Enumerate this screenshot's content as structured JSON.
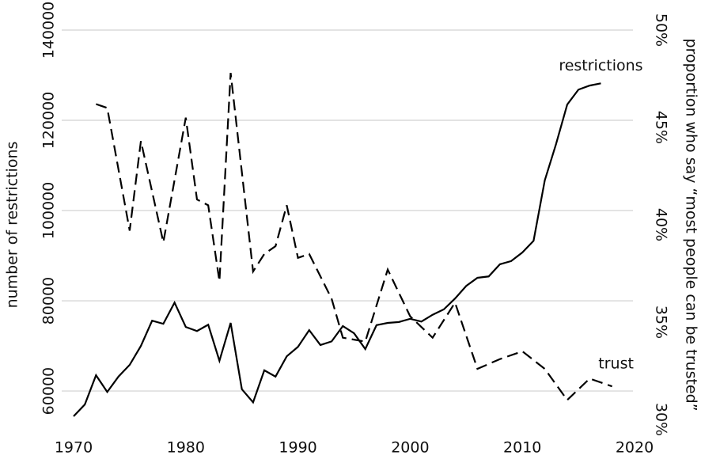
{
  "chart_data": {
    "type": "line",
    "xlim": [
      1970,
      2020
    ],
    "xticks": [
      1970,
      1980,
      1990,
      2000,
      2010,
      2020
    ],
    "ylim": [
      53700,
      140000
    ],
    "yticks": [
      60000,
      80000,
      100000,
      120000,
      140000
    ],
    "y2lim": [
      30,
      50
    ],
    "y2ticks": [
      {
        "value": 30,
        "label": "30%"
      },
      {
        "value": 35,
        "label": "35%"
      },
      {
        "value": 40,
        "label": "40%"
      },
      {
        "value": 45,
        "label": "45%"
      },
      {
        "value": 50,
        "label": "50%"
      }
    ],
    "ylabel": "number of restrictions",
    "y2label": "proportion who say “most people can be trusted”",
    "grid": true,
    "series": [
      {
        "name": "restrictions",
        "color": "#000000",
        "dash": false,
        "x": [
          1970,
          1971,
          1972,
          1973,
          1974,
          1975,
          1976,
          1977,
          1978,
          1979,
          1980,
          1981,
          1982,
          1983,
          1984,
          1985,
          1986,
          1987,
          1988,
          1989,
          1990,
          1991,
          1992,
          1993,
          1994,
          1995,
          1996,
          1997,
          1998,
          1999,
          2000,
          2001,
          2002,
          2003,
          2004,
          2005,
          2006,
          2007,
          2008,
          2009,
          2010,
          2011,
          2012,
          2013,
          2014,
          2015,
          2016,
          2017
        ],
        "values": [
          54400,
          57000,
          63500,
          59800,
          63200,
          65800,
          70000,
          75600,
          74900,
          79600,
          74200,
          73300,
          74700,
          66700,
          75100,
          60400,
          57500,
          64600,
          63200,
          67700,
          69800,
          73500,
          70200,
          71000,
          74400,
          72800,
          69300,
          74600,
          75100,
          75300,
          76000,
          75400,
          76900,
          78100,
          80500,
          83300,
          85100,
          85400,
          88100,
          88800,
          90700,
          93300,
          106700,
          114700,
          123500,
          126800,
          127700,
          128200
        ]
      },
      {
        "name": "trust",
        "color": "#000000",
        "dash": true,
        "axis": "y2",
        "x": [
          1972,
          1973,
          1975,
          1976,
          1978,
          1980,
          1981,
          1982,
          1983,
          1984,
          1986,
          1987,
          1988,
          1989,
          1990,
          1991,
          1993,
          1994,
          1996,
          1998,
          2000,
          2002,
          2004,
          2006,
          2008,
          2010,
          2012,
          2014,
          2016,
          2018
        ],
        "values": [
          46.2,
          46.0,
          39.7,
          44.3,
          39.1,
          45.5,
          41.3,
          41.0,
          37.1,
          47.8,
          37.6,
          38.5,
          38.9,
          41.0,
          38.3,
          38.5,
          36.2,
          34.2,
          34.0,
          37.7,
          35.3,
          34.2,
          36.0,
          32.6,
          33.1,
          33.5,
          32.6,
          31.0,
          32.1,
          31.7
        ]
      }
    ]
  }
}
